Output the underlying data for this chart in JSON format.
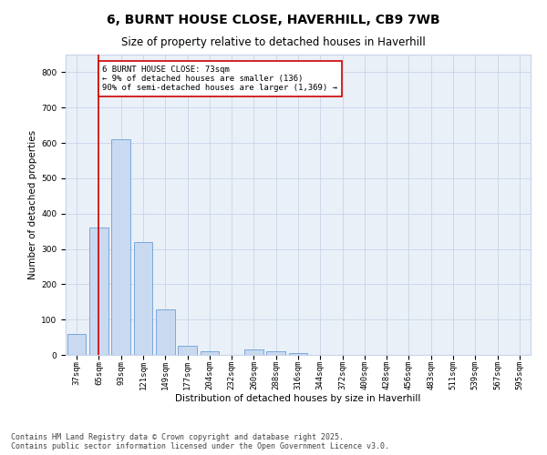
{
  "title": "6, BURNT HOUSE CLOSE, HAVERHILL, CB9 7WB",
  "subtitle": "Size of property relative to detached houses in Haverhill",
  "xlabel": "Distribution of detached houses by size in Haverhill",
  "ylabel": "Number of detached properties",
  "bar_labels": [
    "37sqm",
    "65sqm",
    "93sqm",
    "121sqm",
    "149sqm",
    "177sqm",
    "204sqm",
    "232sqm",
    "260sqm",
    "288sqm",
    "316sqm",
    "344sqm",
    "372sqm",
    "400sqm",
    "428sqm",
    "456sqm",
    "483sqm",
    "511sqm",
    "539sqm",
    "567sqm",
    "595sqm"
  ],
  "bar_values": [
    60,
    360,
    610,
    320,
    130,
    25,
    10,
    0,
    15,
    10,
    5,
    0,
    0,
    0,
    0,
    0,
    0,
    0,
    0,
    0,
    0
  ],
  "bar_color": "#c9d9f0",
  "bar_edge_color": "#6a9fd8",
  "vline_x": 1.0,
  "vline_color": "#cc0000",
  "annotation_text": "6 BURNT HOUSE CLOSE: 73sqm\n← 9% of detached houses are smaller (136)\n90% of semi-detached houses are larger (1,369) →",
  "annotation_box_color": "#ffffff",
  "annotation_box_edge": "#cc0000",
  "ylim": [
    0,
    850
  ],
  "yticks": [
    0,
    100,
    200,
    300,
    400,
    500,
    600,
    700,
    800
  ],
  "grid_color": "#c8d4e8",
  "background_color": "#eaf0f8",
  "footer_text": "Contains HM Land Registry data © Crown copyright and database right 2025.\nContains public sector information licensed under the Open Government Licence v3.0.",
  "title_fontsize": 10,
  "subtitle_fontsize": 8.5,
  "axis_label_fontsize": 7.5,
  "tick_fontsize": 6.5,
  "annotation_fontsize": 6.5,
  "footer_fontsize": 6
}
